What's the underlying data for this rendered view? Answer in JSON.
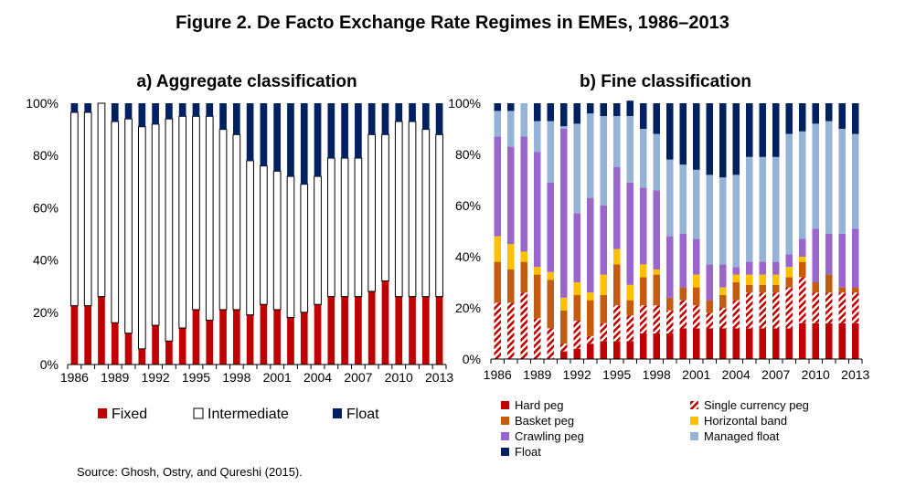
{
  "figure_title": "Figure 2. De Facto Exchange Rate Regimes in EMEs, 1986–2013",
  "source": "Source: Ghosh, Ostry, and Qureshi (2015).",
  "colors": {
    "fixed": "#c00000",
    "intermediate": "#ffffff",
    "float": "#002060",
    "hard_peg": "#c00000",
    "single_currency_peg": "#c00000",
    "basket_peg": "#c55a11",
    "horizontal_band": "#ffc000",
    "crawling_peg": "#9966cc",
    "managed_float": "#95b3d7"
  },
  "chart_data": [
    {
      "type": "bar",
      "stacked": true,
      "title": "a) Aggregate classification",
      "xlabel": "",
      "ylabel": "",
      "ylim": [
        0,
        100
      ],
      "y_tick_labels": [
        "0%",
        "20%",
        "40%",
        "60%",
        "80%",
        "100%"
      ],
      "x_tick_labels": [
        "1986",
        "1989",
        "1992",
        "1995",
        "1998",
        "2001",
        "2004",
        "2007",
        "2010",
        "2013"
      ],
      "categories": [
        1986,
        1987,
        1988,
        1989,
        1990,
        1991,
        1992,
        1993,
        1994,
        1995,
        1996,
        1997,
        1998,
        1999,
        2000,
        2001,
        2002,
        2003,
        2004,
        2005,
        2006,
        2007,
        2008,
        2009,
        2010,
        2011,
        2012,
        2013
      ],
      "legend_position": "bottom",
      "series": [
        {
          "name": "Fixed",
          "values": [
            22.5,
            22.5,
            26,
            16,
            12,
            6,
            15,
            9,
            14,
            21,
            17,
            21,
            21,
            19,
            23,
            21,
            18,
            20,
            23,
            26,
            26,
            26,
            28,
            32,
            26,
            26,
            26,
            26
          ]
        },
        {
          "name": "Intermediate",
          "values": [
            74,
            74,
            74,
            77,
            82,
            85,
            77,
            85,
            81,
            74,
            78,
            69,
            67,
            59,
            53,
            53,
            54,
            49,
            49,
            53,
            53,
            53,
            60,
            56,
            67,
            67,
            64,
            62
          ]
        },
        {
          "name": "Float",
          "values": [
            3.5,
            3.5,
            0,
            7,
            6,
            9,
            8,
            6,
            5,
            5,
            5,
            10,
            12,
            22,
            24,
            26,
            28,
            31,
            28,
            21,
            21,
            21,
            12,
            12,
            7,
            7,
            10,
            12
          ]
        }
      ]
    },
    {
      "type": "bar",
      "stacked": true,
      "title": "b) Fine classification",
      "xlabel": "",
      "ylabel": "",
      "ylim": [
        0,
        100
      ],
      "y_tick_labels": [
        "0%",
        "20%",
        "40%",
        "60%",
        "80%",
        "100%"
      ],
      "x_tick_labels": [
        "1986",
        "1989",
        "1992",
        "1995",
        "1998",
        "2001",
        "2004",
        "2007",
        "2010",
        "2013"
      ],
      "categories": [
        1986,
        1987,
        1988,
        1989,
        1990,
        1991,
        1992,
        1993,
        1994,
        1995,
        1996,
        1997,
        1998,
        1999,
        2000,
        2001,
        2002,
        2003,
        2004,
        2005,
        2006,
        2007,
        2008,
        2009,
        2010,
        2011,
        2012,
        2013
      ],
      "legend_position": "bottom",
      "series": [
        {
          "name": "Hard peg",
          "values": [
            0,
            0,
            0,
            0,
            0,
            3,
            4,
            6,
            7,
            7,
            7,
            10,
            10,
            10,
            12,
            12,
            12,
            12,
            12,
            12,
            12,
            12,
            12,
            14,
            14,
            14,
            14,
            14
          ]
        },
        {
          "name": "Single currency peg",
          "values": [
            22,
            22,
            26,
            16,
            12,
            3,
            11,
            3,
            7,
            14,
            10,
            11,
            11,
            9,
            11,
            9,
            6,
            8,
            11,
            14,
            14,
            14,
            16,
            18,
            12,
            12,
            12,
            12
          ]
        },
        {
          "name": "Basket peg",
          "values": [
            16,
            13,
            12,
            17,
            19,
            13,
            10,
            14,
            11,
            16,
            6,
            11,
            12,
            5,
            5,
            7,
            5,
            5,
            7,
            3,
            3,
            3,
            4,
            6,
            4,
            7,
            2,
            2
          ]
        },
        {
          "name": "Horizontal band",
          "values": [
            10,
            10,
            4,
            3,
            3,
            5,
            5,
            3,
            8,
            6,
            6,
            5,
            2,
            0,
            0,
            5,
            0,
            3,
            3,
            4,
            4,
            4,
            4,
            2,
            0,
            0,
            0,
            0
          ]
        },
        {
          "name": "Crawling peg",
          "values": [
            39,
            38,
            45,
            45,
            35,
            66,
            27,
            37,
            27,
            32,
            40,
            30,
            31,
            24,
            21,
            14,
            14,
            9,
            3,
            5,
            5,
            5,
            5,
            7,
            21,
            16,
            21,
            23
          ]
        },
        {
          "name": "Managed float",
          "values": [
            10,
            14,
            13,
            12,
            24,
            1,
            35,
            33,
            35,
            20,
            26,
            23,
            22,
            30,
            27,
            27,
            35,
            34,
            36,
            41,
            41,
            41,
            47,
            42,
            41,
            44,
            41,
            37
          ]
        },
        {
          "name": "Float",
          "values": [
            3,
            3,
            0,
            7,
            7,
            9,
            8,
            4,
            5,
            5,
            6,
            10,
            12,
            22,
            24,
            26,
            28,
            29,
            28,
            21,
            21,
            21,
            12,
            11,
            8,
            7,
            10,
            12
          ]
        }
      ]
    }
  ]
}
